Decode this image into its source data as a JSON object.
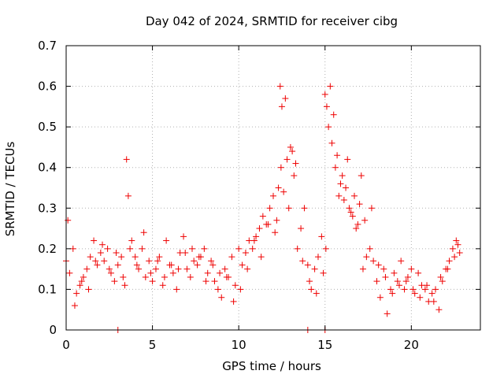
{
  "chart_data": {
    "type": "scatter",
    "title": "Day 042 of 2024, SRMTID for receiver cibg",
    "xlabel": "GPS time / hours",
    "ylabel": "SRMTID / TECUs",
    "xlim": [
      0,
      24
    ],
    "ylim": [
      0,
      0.7
    ],
    "xticks": [
      0,
      5,
      10,
      15,
      20
    ],
    "xtick_labels": [
      "0",
      "5",
      "10",
      "15",
      "20"
    ],
    "yticks": [
      0,
      0.1,
      0.2,
      0.3,
      0.4,
      0.5,
      0.6,
      0.7
    ],
    "ytick_labels": [
      "0",
      "0.1",
      "0.2",
      "0.3",
      "0.4",
      "0.5",
      "0.6",
      "0.7"
    ],
    "grid": true,
    "marker": "plus",
    "color": "#ee0000",
    "series": [
      {
        "name": "SRMTID",
        "x": [
          0.0,
          0.2,
          0.4,
          0.6,
          0.8,
          1.0,
          1.2,
          1.4,
          1.6,
          1.8,
          2.0,
          2.2,
          2.4,
          2.6,
          2.8,
          3.0,
          3.2,
          3.4,
          3.5,
          3.6,
          3.8,
          4.0,
          4.2,
          4.4,
          4.6,
          4.8,
          5.0,
          5.2,
          5.4,
          5.6,
          5.8,
          6.0,
          6.2,
          6.4,
          6.6,
          6.8,
          7.0,
          7.2,
          7.4,
          7.6,
          7.8,
          8.0,
          8.2,
          8.4,
          8.6,
          8.8,
          9.0,
          9.2,
          9.4,
          9.6,
          9.8,
          10.0,
          10.2,
          10.4,
          10.6,
          10.8,
          11.0,
          11.2,
          11.4,
          11.6,
          11.8,
          12.0,
          12.2,
          12.4,
          12.5,
          12.6,
          12.8,
          13.0,
          13.2,
          13.4,
          13.6,
          13.8,
          14.0,
          14.2,
          14.4,
          14.6,
          14.8,
          15.0,
          15.1,
          15.2,
          15.4,
          15.6,
          15.8,
          16.0,
          16.2,
          16.4,
          16.6,
          16.8,
          17.0,
          17.2,
          17.4,
          17.6,
          17.8,
          18.0,
          18.2,
          18.4,
          18.6,
          18.8,
          19.0,
          19.2,
          19.4,
          19.6,
          19.8,
          20.0,
          20.2,
          20.4,
          20.6,
          20.8,
          21.0,
          21.2,
          21.4,
          21.6,
          21.8,
          22.0,
          22.2,
          22.4,
          22.6,
          22.8,
          0.1,
          0.5,
          0.9,
          1.3,
          1.7,
          2.1,
          2.5,
          2.9,
          3.3,
          3.7,
          4.1,
          4.5,
          4.9,
          5.3,
          5.7,
          6.1,
          6.5,
          6.9,
          7.3,
          7.7,
          8.1,
          8.5,
          8.9,
          9.3,
          9.7,
          10.1,
          10.5,
          10.9,
          11.3,
          11.7,
          12.1,
          12.3,
          12.45,
          12.7,
          12.9,
          13.1,
          13.3,
          13.7,
          14.1,
          14.5,
          14.9,
          15.05,
          15.3,
          15.5,
          15.7,
          15.9,
          16.1,
          16.3,
          16.5,
          16.7,
          16.9,
          17.1,
          17.3,
          17.7,
          18.1,
          18.5,
          18.9,
          19.3,
          19.7,
          20.1,
          20.5,
          20.9,
          21.3,
          21.7,
          22.1,
          22.5,
          22.7,
          3.0,
          14.0,
          15.0
        ],
        "y": [
          0.17,
          0.14,
          0.2,
          0.09,
          0.11,
          0.13,
          0.15,
          0.18,
          0.22,
          0.16,
          0.19,
          0.17,
          0.2,
          0.14,
          0.12,
          0.16,
          0.18,
          0.11,
          0.42,
          0.33,
          0.22,
          0.18,
          0.15,
          0.2,
          0.13,
          0.17,
          0.12,
          0.15,
          0.18,
          0.11,
          0.22,
          0.16,
          0.14,
          0.1,
          0.19,
          0.23,
          0.15,
          0.13,
          0.17,
          0.16,
          0.18,
          0.2,
          0.14,
          0.17,
          0.12,
          0.1,
          0.08,
          0.15,
          0.13,
          0.18,
          0.11,
          0.2,
          0.16,
          0.19,
          0.22,
          0.2,
          0.23,
          0.25,
          0.28,
          0.26,
          0.3,
          0.33,
          0.27,
          0.6,
          0.55,
          0.34,
          0.42,
          0.45,
          0.38,
          0.2,
          0.25,
          0.3,
          0.16,
          0.1,
          0.15,
          0.18,
          0.23,
          0.58,
          0.55,
          0.5,
          0.46,
          0.4,
          0.33,
          0.38,
          0.35,
          0.3,
          0.28,
          0.25,
          0.31,
          0.15,
          0.18,
          0.2,
          0.17,
          0.12,
          0.08,
          0.15,
          0.04,
          0.1,
          0.14,
          0.12,
          0.17,
          0.1,
          0.13,
          0.15,
          0.09,
          0.14,
          0.11,
          0.1,
          0.07,
          0.09,
          0.1,
          0.05,
          0.12,
          0.15,
          0.17,
          0.2,
          0.22,
          0.19,
          0.27,
          0.06,
          0.12,
          0.1,
          0.17,
          0.21,
          0.15,
          0.19,
          0.13,
          0.2,
          0.16,
          0.24,
          0.14,
          0.17,
          0.13,
          0.16,
          0.15,
          0.19,
          0.2,
          0.18,
          0.12,
          0.16,
          0.14,
          0.13,
          0.07,
          0.1,
          0.15,
          0.22,
          0.18,
          0.26,
          0.24,
          0.35,
          0.4,
          0.57,
          0.3,
          0.44,
          0.41,
          0.17,
          0.12,
          0.09,
          0.14,
          0.2,
          0.6,
          0.53,
          0.43,
          0.36,
          0.32,
          0.42,
          0.29,
          0.33,
          0.26,
          0.38,
          0.27,
          0.3,
          0.16,
          0.13,
          0.09,
          0.11,
          0.12,
          0.1,
          0.08,
          0.11,
          0.07,
          0.13,
          0.15,
          0.18,
          0.21,
          0.0,
          0.0,
          0.0
        ]
      }
    ]
  }
}
